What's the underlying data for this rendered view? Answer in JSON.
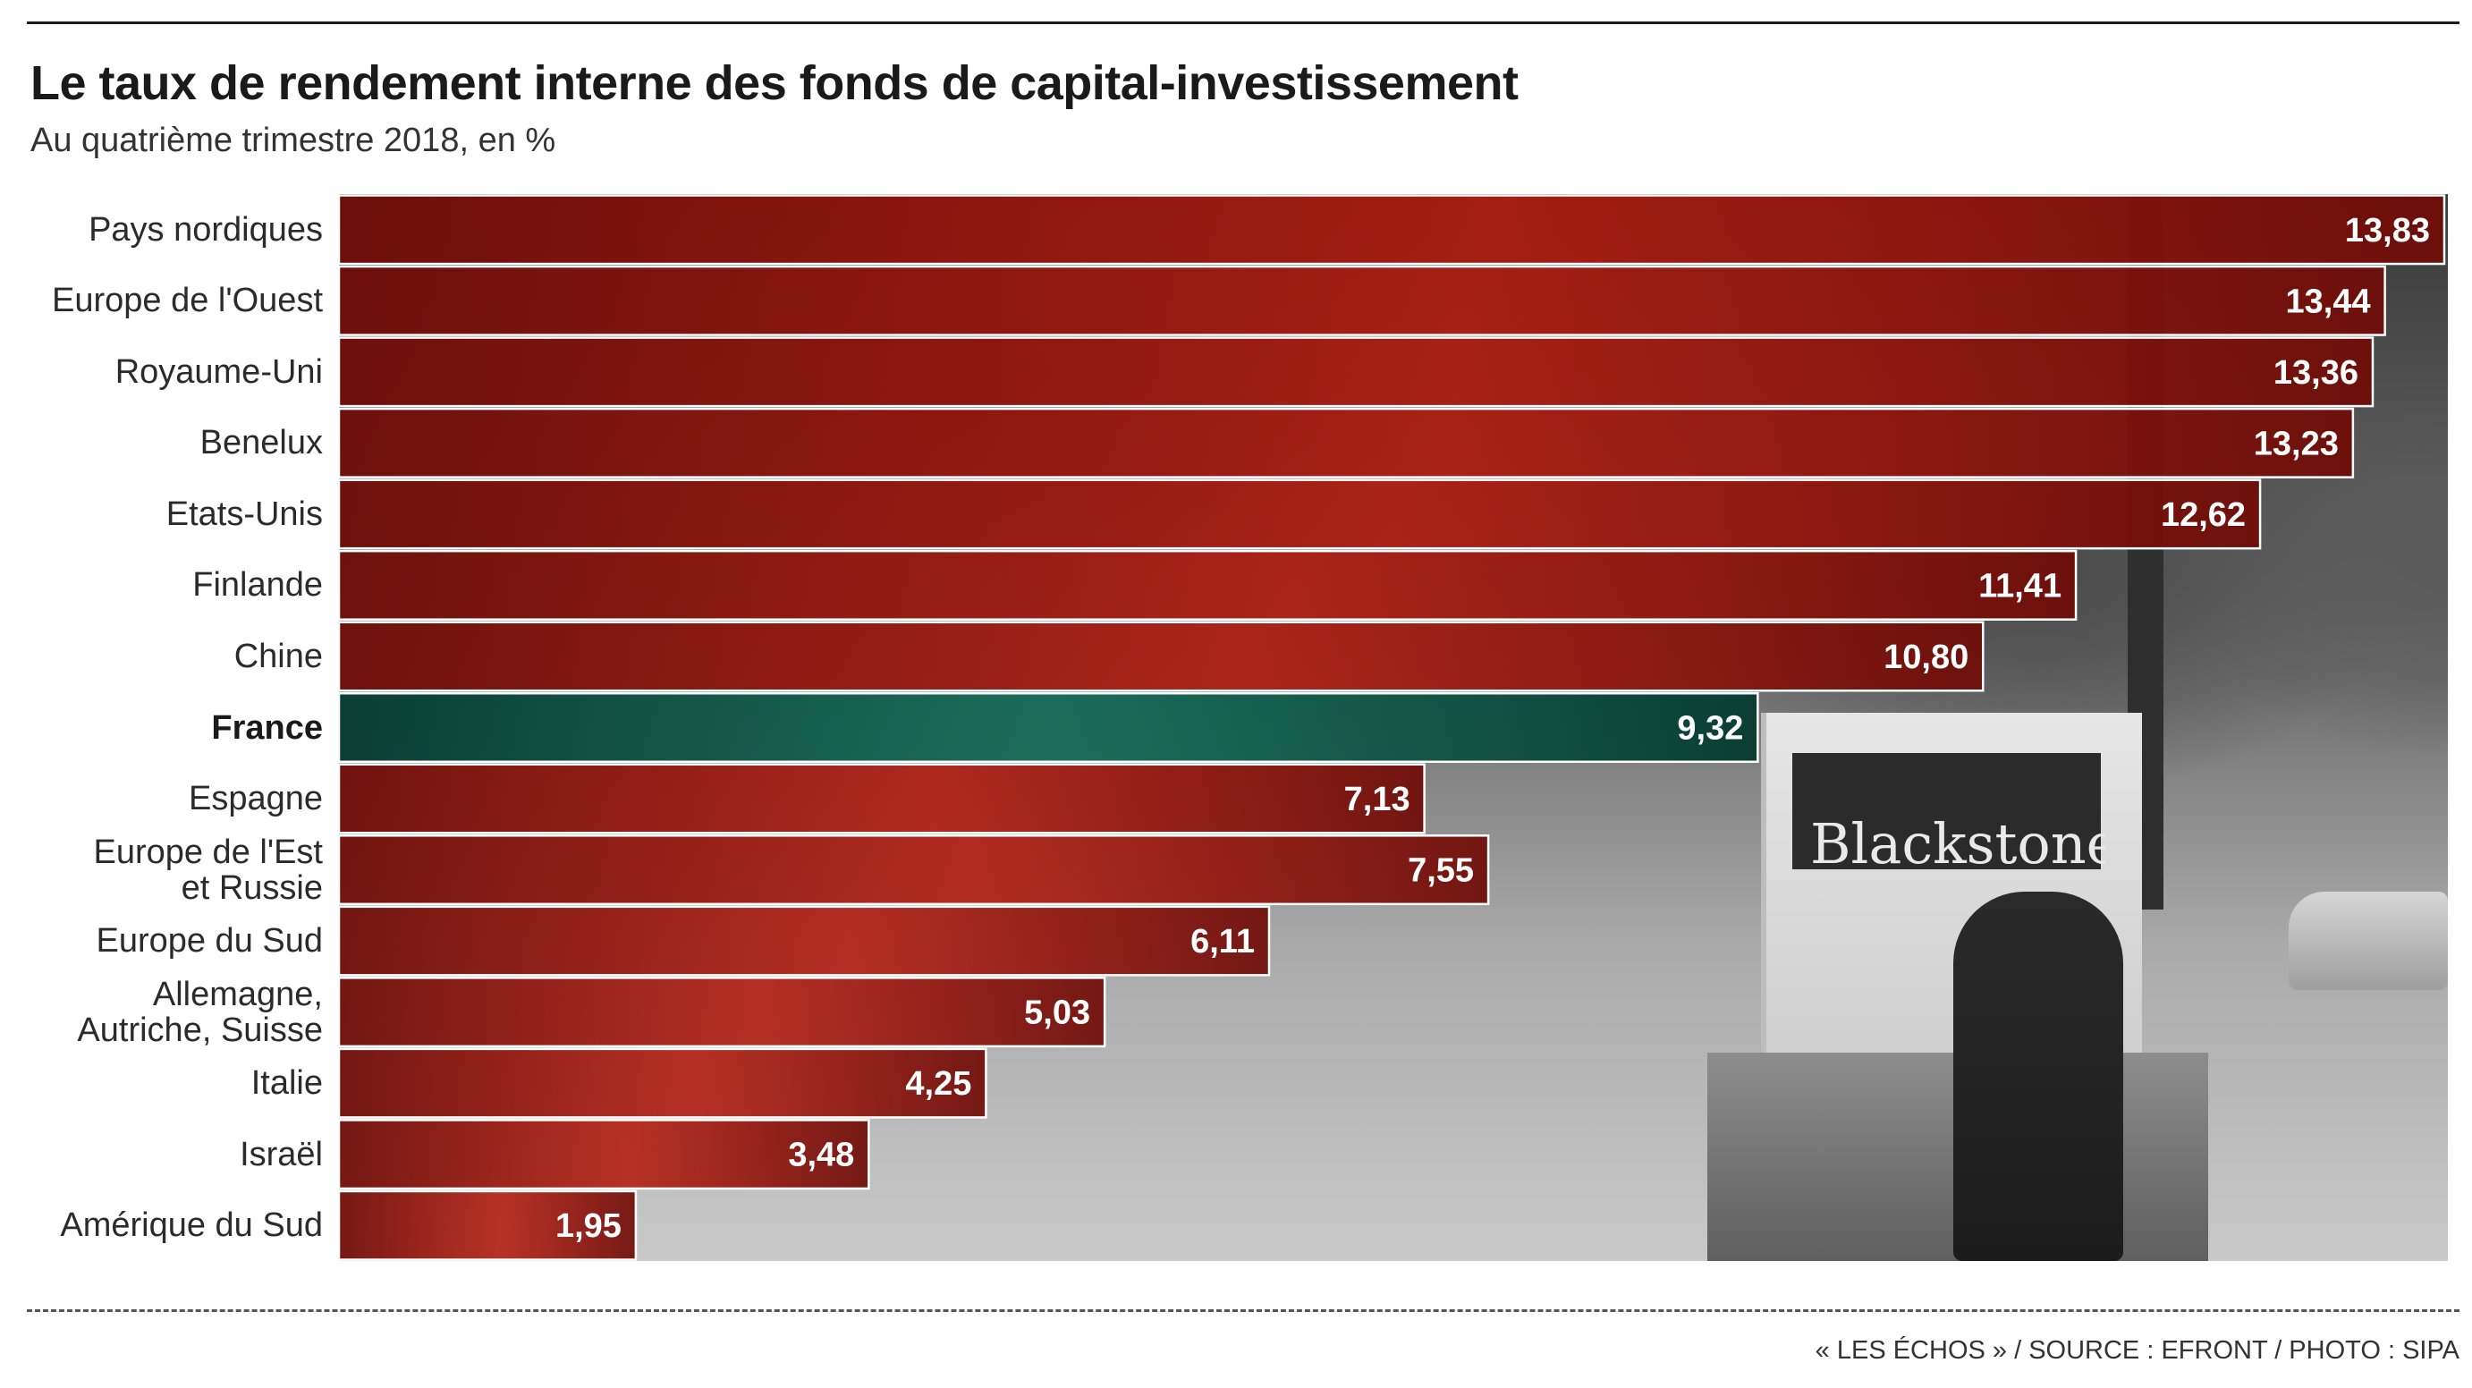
{
  "chart_data": {
    "type": "bar",
    "orientation": "horizontal",
    "title": "Le taux de rendement interne des fonds de capital-investissement",
    "subtitle": "Au quatrième trimestre 2018, en %",
    "categories": [
      "Pays nordiques",
      "Europe de l'Ouest",
      "Royaume-Uni",
      "Benelux",
      "Etats-Unis",
      "Finlande",
      "Chine",
      "France",
      "Espagne",
      "Europe de l'Est\net Russie",
      "Europe du Sud",
      "Allemagne,\nAutriche, Suisse",
      "Italie",
      "Israël",
      "Amérique du Sud"
    ],
    "values": [
      13.83,
      13.44,
      13.36,
      13.23,
      12.62,
      11.41,
      10.8,
      9.32,
      7.13,
      7.55,
      6.11,
      5.03,
      4.25,
      3.48,
      1.95
    ],
    "value_labels": [
      "13,83",
      "13,44",
      "13,36",
      "13,23",
      "12,62",
      "11,41",
      "10,80",
      "9,32",
      "7,13",
      "7,55",
      "6,11",
      "5,03",
      "4,25",
      "3,48",
      "1,95"
    ],
    "highlight_category": "France",
    "xlim": [
      0,
      13.83
    ],
    "grid": false,
    "legend": "none",
    "colors": {
      "bar": "#b5190d",
      "bar_dark": "#6f0b06",
      "highlight": "#0f6b57",
      "highlight_dark": "#053b30",
      "value_text": "#ffffff",
      "bar_outline": "#ffffff"
    }
  },
  "photo": {
    "sign_text": "Blackstone"
  },
  "footer": {
    "source": "« LES ÉCHOS » / SOURCE : EFRONT / PHOTO : SIPA"
  }
}
